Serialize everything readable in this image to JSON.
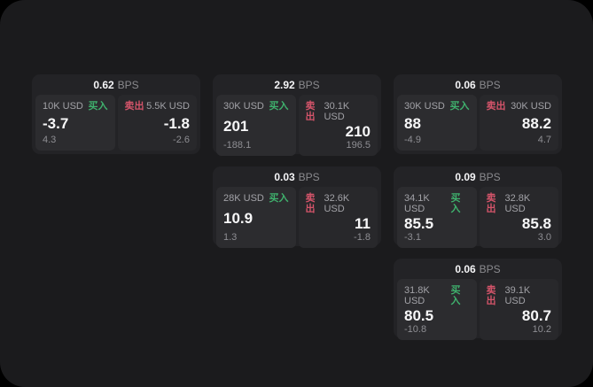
{
  "labels": {
    "bps": "BPS",
    "buy": "买入",
    "sell": "卖出"
  },
  "colors": {
    "buy": "#3fb16d",
    "sell": "#d4546a",
    "panel_bg": "#1b1b1d",
    "card_bg": "#232326"
  },
  "cards": [
    {
      "bps": "0.62",
      "buy": {
        "size": "10K USD",
        "price": "-3.7",
        "delta": "4.3"
      },
      "sell": {
        "size": "5.5K USD",
        "price": "-1.8",
        "delta": "-2.6"
      }
    },
    {
      "bps": "2.92",
      "buy": {
        "size": "30K USD",
        "price": "201",
        "delta": "-188.1"
      },
      "sell": {
        "size": "30.1K USD",
        "price": "210",
        "delta": "196.5"
      }
    },
    {
      "bps": "0.06",
      "buy": {
        "size": "30K USD",
        "price": "88",
        "delta": "-4.9"
      },
      "sell": {
        "size": "30K USD",
        "price": "88.2",
        "delta": "4.7"
      }
    },
    {
      "bps": "0.03",
      "buy": {
        "size": "28K USD",
        "price": "10.9",
        "delta": "1.3"
      },
      "sell": {
        "size": "32.6K USD",
        "price": "11",
        "delta": "-1.8"
      }
    },
    {
      "bps": "0.09",
      "buy": {
        "size": "34.1K USD",
        "price": "85.5",
        "delta": "-3.1"
      },
      "sell": {
        "size": "32.8K USD",
        "price": "85.8",
        "delta": "3.0"
      }
    },
    {
      "bps": "0.06",
      "buy": {
        "size": "31.8K USD",
        "price": "80.5",
        "delta": "-10.8"
      },
      "sell": {
        "size": "39.1K USD",
        "price": "80.7",
        "delta": "10.2"
      }
    }
  ]
}
